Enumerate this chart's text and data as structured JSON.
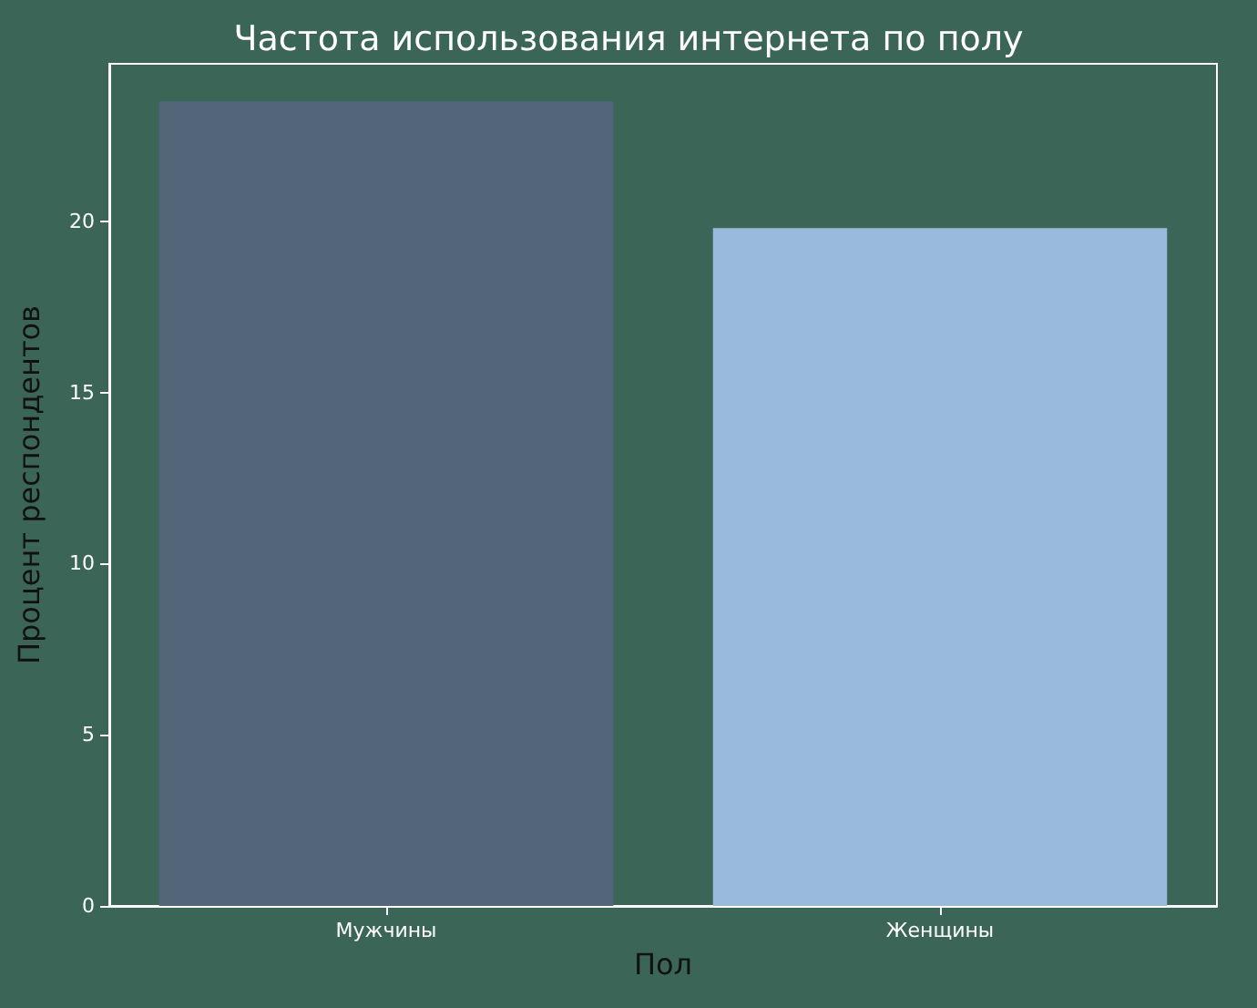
{
  "chart_data": {
    "type": "bar",
    "title": "Частота использования интернета по полу",
    "xlabel": "Пол",
    "ylabel": "Процент респондентов",
    "categories": [
      "Мужчины",
      "Женщины"
    ],
    "values": [
      23.5,
      19.8
    ],
    "colors": [
      "#536578",
      "#99b9dd"
    ],
    "ylim": [
      0,
      24.6
    ],
    "yticks": [
      0,
      5,
      10,
      15,
      20
    ],
    "grid": false
  }
}
